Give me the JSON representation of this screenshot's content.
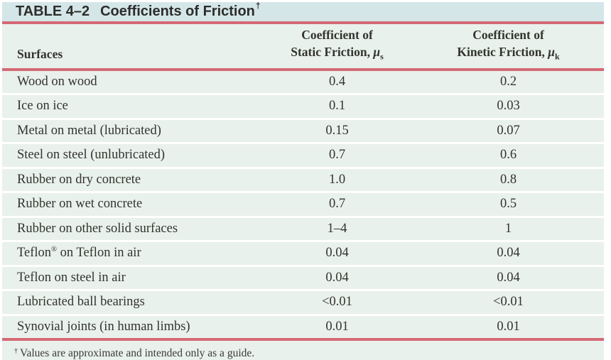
{
  "title": {
    "label": "TABLE 4–2",
    "text": "Coefficients of Friction",
    "dagger": "†"
  },
  "headers": {
    "surfaces": "Surfaces",
    "static": {
      "line1": "Coefficient of",
      "line2": "Static Friction,",
      "symbol": "μ",
      "sub": "s"
    },
    "kinetic": {
      "line1": "Coefficient of",
      "line2": "Kinetic Friction,",
      "symbol": "μ",
      "sub": "k"
    }
  },
  "footnote": {
    "dagger": "†",
    "text": "Values are approximate and intended only as a guide."
  },
  "colors": {
    "title_bar_bg": "#d4e6e8",
    "table_bg": "#e9f1ec",
    "rule_red": "#d46a75",
    "row_separator": "#ffffff",
    "text": "#33332f"
  },
  "chart_data": {
    "type": "table",
    "title": "TABLE 4–2 Coefficients of Friction†",
    "columns": [
      "Surfaces",
      "Coefficient of Static Friction, μs",
      "Coefficient of Kinetic Friction, μk"
    ],
    "rows": [
      {
        "surface": "Wood on wood",
        "static": "0.4",
        "kinetic": "0.2"
      },
      {
        "surface": "Ice on ice",
        "static": "0.1",
        "kinetic": "0.03"
      },
      {
        "surface": "Metal on metal (lubricated)",
        "static": "0.15",
        "kinetic": "0.07"
      },
      {
        "surface": "Steel on steel (unlubricated)",
        "static": "0.7",
        "kinetic": "0.6"
      },
      {
        "surface": "Rubber on dry concrete",
        "static": "1.0",
        "kinetic": "0.8"
      },
      {
        "surface": "Rubber on wet concrete",
        "static": "0.7",
        "kinetic": "0.5"
      },
      {
        "surface": "Rubber on other solid surfaces",
        "static": "1–4",
        "kinetic": "1"
      },
      {
        "surface": "Teflon® on Teflon in air",
        "static": "0.04",
        "kinetic": "0.04"
      },
      {
        "surface": "Teflon on steel in air",
        "static": "0.04",
        "kinetic": "0.04"
      },
      {
        "surface": "Lubricated ball bearings",
        "static": "<0.01",
        "kinetic": "<0.01"
      },
      {
        "surface": "Synovial joints (in human limbs)",
        "static": "0.01",
        "kinetic": "0.01"
      }
    ],
    "footnote": "† Values are approximate and intended only as a guide."
  }
}
